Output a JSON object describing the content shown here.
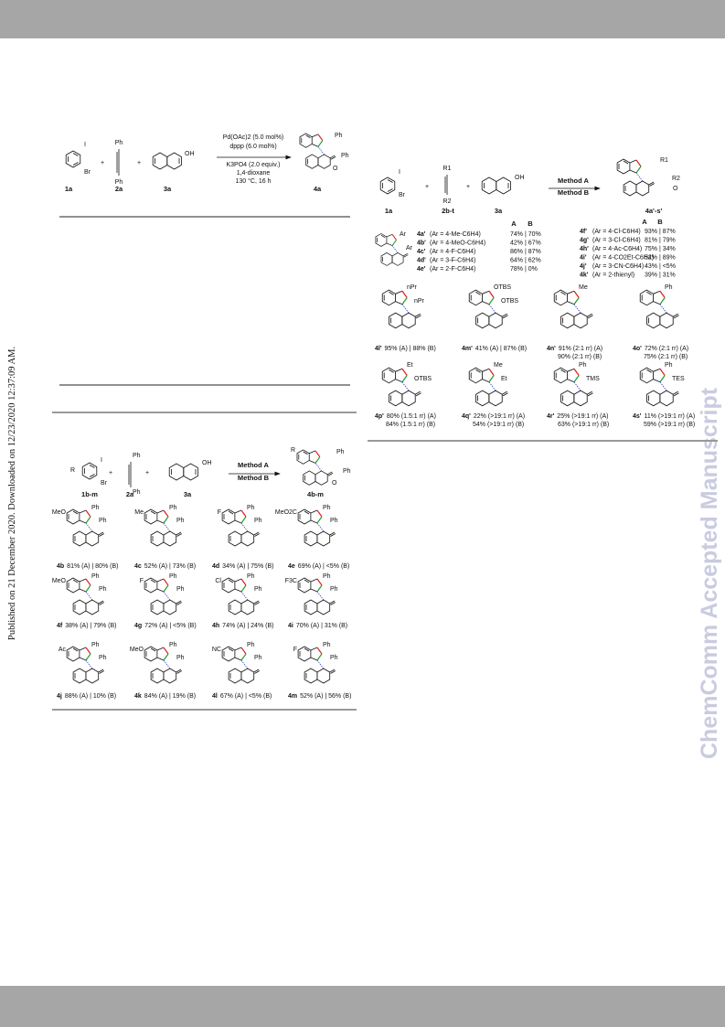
{
  "sidebar": {
    "published": "Published on 21 December 2020. Downloaded on 12/23/2020 12:37:09 AM.",
    "watermark": "ChemComm Accepted Manuscript"
  },
  "scheme1": {
    "reactants": [
      {
        "label": "1a",
        "groups": [
          "I",
          "Br"
        ]
      },
      {
        "label": "2a",
        "groups": [
          "Ph",
          "Ph"
        ]
      },
      {
        "label": "3a",
        "groups": [
          "OH"
        ]
      }
    ],
    "plus": [
      "+",
      "+"
    ],
    "conditions": [
      "Pd(OAc)2 (5.0 mol%)",
      "dppp (6.0 mol%)",
      "K3PO4 (2.0 equiv.)",
      "1,4-dioxane",
      "130 °C, 16 h"
    ],
    "product": {
      "label": "4a",
      "groups": [
        "Ph",
        "Ph",
        "O"
      ]
    }
  },
  "scheme2": {
    "reactants": [
      {
        "label": "1b-m",
        "groups": [
          "R",
          "I",
          "Br"
        ]
      },
      {
        "label": "2a",
        "groups": [
          "Ph",
          "Ph"
        ]
      },
      {
        "label": "3a",
        "groups": [
          "OH"
        ]
      }
    ],
    "plus": [
      "+",
      "+"
    ],
    "methods": [
      "Method A",
      "Method B"
    ],
    "product": {
      "label": "4b-m",
      "groups": [
        "R",
        "Ph",
        "Ph",
        "O"
      ]
    },
    "items": [
      {
        "label": "4b",
        "yield": "81% (A) | 80% (B)",
        "groups": [
          "MeO",
          "Ph",
          "Ph"
        ]
      },
      {
        "label": "4c",
        "yield": "52% (A) | 73% (B)",
        "groups": [
          "Me",
          "Ph",
          "Ph"
        ]
      },
      {
        "label": "4d",
        "yield": "34% (A) | 75% (B)",
        "groups": [
          "F",
          "Ph",
          "Ph"
        ]
      },
      {
        "label": "4e",
        "yield": "69% (A) | <5% (B)",
        "groups": [
          "MeO2C",
          "Ph",
          "Ph"
        ]
      },
      {
        "label": "4f",
        "yield": "38% (A) | 79% (B)",
        "groups": [
          "MeO",
          "Ph",
          "Ph"
        ]
      },
      {
        "label": "4g",
        "yield": "72% (A) | <5% (B)",
        "groups": [
          "F",
          "Ph",
          "Ph"
        ]
      },
      {
        "label": "4h",
        "yield": "74% (A) | 24% (B)",
        "groups": [
          "Cl",
          "Ph",
          "Ph"
        ]
      },
      {
        "label": "4i",
        "yield": "70% (A) | 31% (B)",
        "groups": [
          "F3C",
          "Ph",
          "Ph"
        ]
      },
      {
        "label": "4j",
        "yield": "88% (A) | 10% (B)",
        "groups": [
          "Ac",
          "Ph",
          "Ph"
        ]
      },
      {
        "label": "4k",
        "yield": "84% (A) | 19% (B)",
        "groups": [
          "MeO",
          "Ph",
          "Ph"
        ]
      },
      {
        "label": "4l",
        "yield": "67% (A) | <5% (B)",
        "groups": [
          "NC",
          "Ph",
          "Ph"
        ]
      },
      {
        "label": "4m",
        "yield": "52% (A) | 56% (B)",
        "groups": [
          "F",
          "Ph",
          "Ph"
        ]
      }
    ]
  },
  "scheme3": {
    "reactants": [
      {
        "label": "1a",
        "groups": [
          "I",
          "Br"
        ]
      },
      {
        "label": "2b-t",
        "groups": [
          "R1",
          "R2"
        ]
      },
      {
        "label": "3a",
        "groups": [
          "OH"
        ]
      }
    ],
    "plus": [
      "+",
      "+"
    ],
    "methods": [
      "Method A",
      "Method B"
    ],
    "product": {
      "label": "4a'-s'",
      "groups": [
        "R1",
        "R2",
        "O"
      ]
    },
    "generic_groups": [
      "Ar",
      "Ar"
    ],
    "table_headers": [
      "A",
      "B",
      "A",
      "B"
    ],
    "table_left": [
      [
        "4a'",
        "(Ar = 4-Me-C6H4)",
        "74% | 70%"
      ],
      [
        "4b'",
        "(Ar = 4-MeO-C6H4)",
        "42% | 67%"
      ],
      [
        "4c'",
        "(Ar = 4-F-C6H4)",
        "86% | 87%"
      ],
      [
        "4d'",
        "(Ar = 3-F-C6H4)",
        "64% | 62%"
      ],
      [
        "4e'",
        "(Ar = 2-F-C6H4)",
        "78% |   0%"
      ]
    ],
    "table_right": [
      [
        "4f'",
        "(Ar = 4-Cl-C6H4)",
        "93% | 87%"
      ],
      [
        "4g'",
        "(Ar = 3-Cl-C6H4)",
        "81% | 79%"
      ],
      [
        "4h'",
        "(Ar = 4-Ac-C6H4)",
        "75% | 34%"
      ],
      [
        "4i'",
        "(Ar = 4-CO2Et-C6H4)",
        "52% | 89%"
      ],
      [
        "4j'",
        "(Ar = 3-CN-C6H4)",
        "43% | <5%"
      ],
      [
        "4k'",
        "(Ar = 2-thienyl)",
        "39% | 31%"
      ]
    ],
    "items": [
      {
        "label": "4l'",
        "yield": [
          "95% (A) | 88% (B)"
        ],
        "groups": [
          "nPr",
          "nPr"
        ]
      },
      {
        "label": "4m'",
        "yield": [
          "41% (A) | 87% (B)"
        ],
        "groups": [
          "OTBS",
          "OTBS"
        ]
      },
      {
        "label": "4n'",
        "yield": [
          "91% (2:1 rr) (A)",
          "90% (2:1 rr) (B)"
        ],
        "groups": [
          "Me"
        ]
      },
      {
        "label": "4o'",
        "yield": [
          "72% (2:1 rr) (A)",
          "75% (2:1 rr) (B)"
        ],
        "groups": [
          "Ph"
        ]
      },
      {
        "label": "4p'",
        "yield": [
          "80% (1.5:1 rr) (A)",
          "84% (1.5:1 rr) (B)"
        ],
        "groups": [
          "Et",
          "OTBS"
        ]
      },
      {
        "label": "4q'",
        "yield": [
          "22% (>19:1 rr) (A)",
          "54% (>19:1 rr) (B)"
        ],
        "groups": [
          "Me",
          "Et"
        ]
      },
      {
        "label": "4r'",
        "yield": [
          "25% (>19:1 rr) (A)",
          "63% (>19:1 rr) (B)"
        ],
        "groups": [
          "Ph",
          "TMS"
        ]
      },
      {
        "label": "4s'",
        "yield": [
          "11% (>19:1 rr) (A)",
          "59% (>19:1 rr) (B)"
        ],
        "groups": [
          "Ph",
          "TES"
        ]
      }
    ]
  }
}
